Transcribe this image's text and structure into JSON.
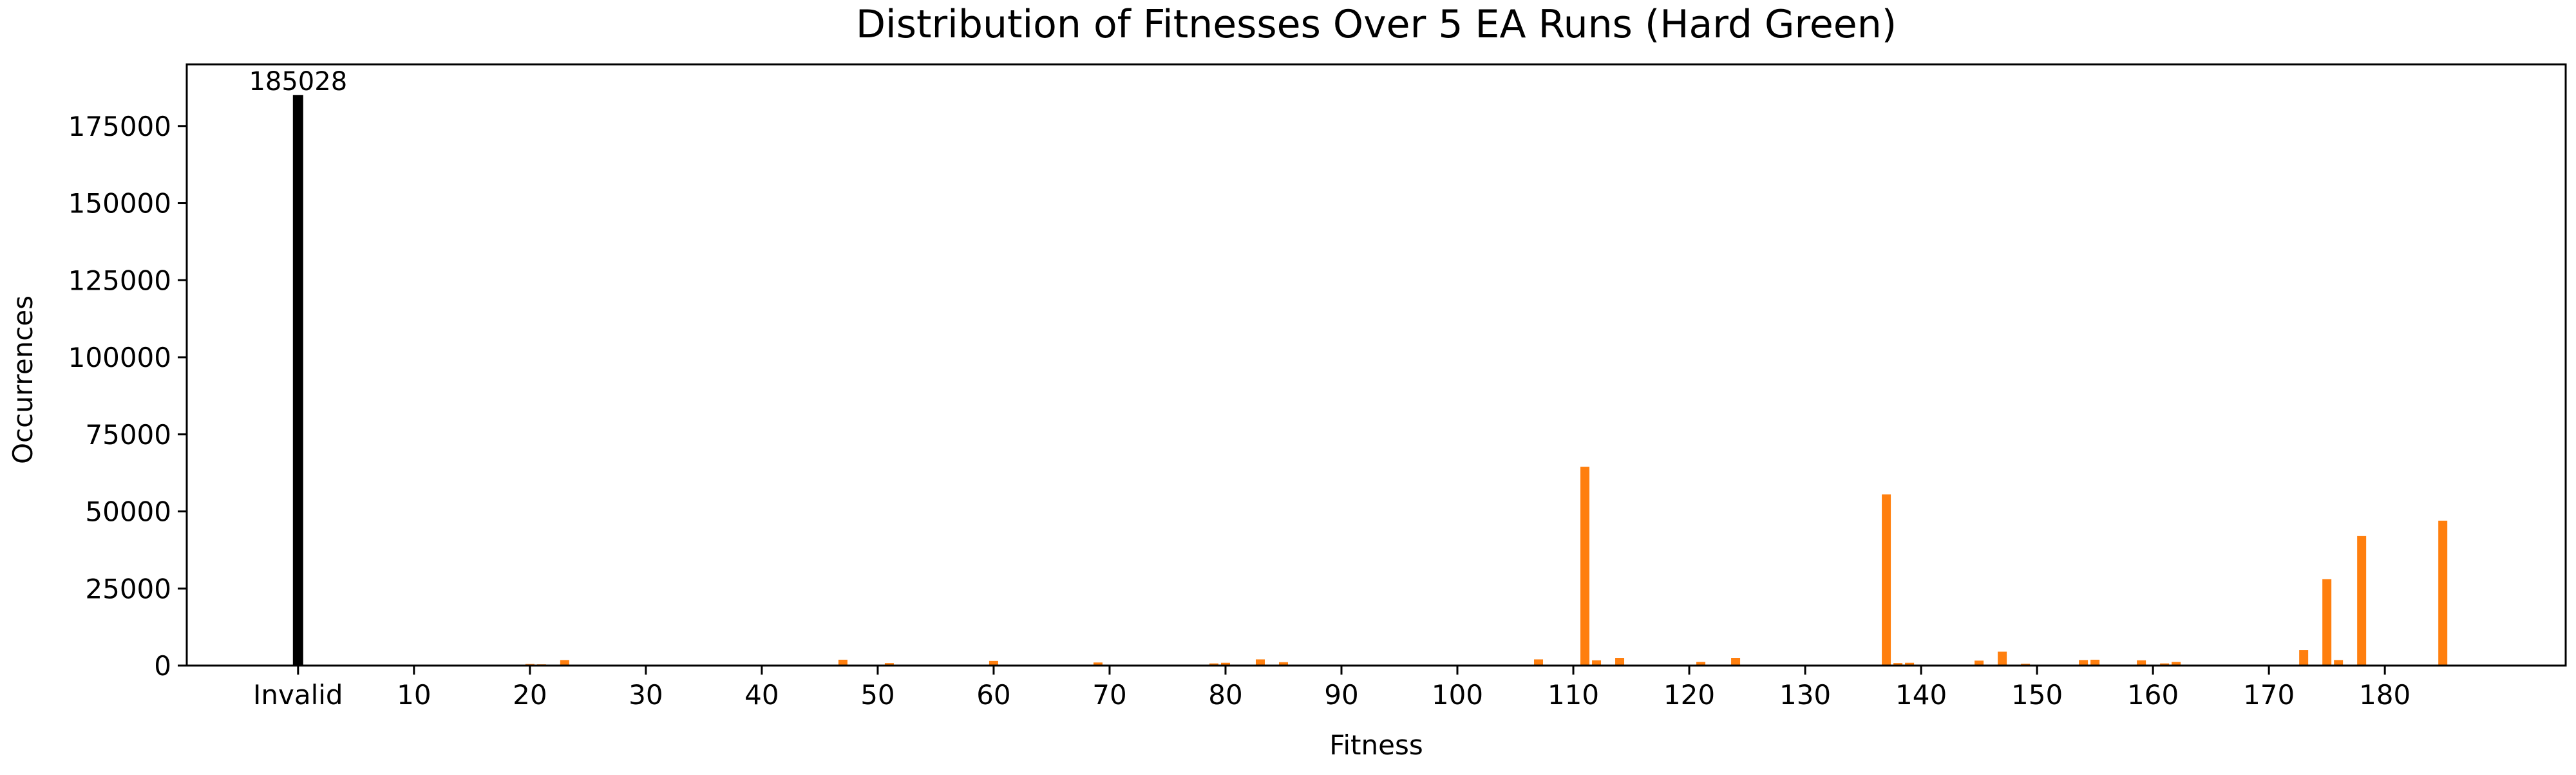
{
  "chart_data": {
    "type": "bar",
    "title": "Distribution of Fitnesses Over 5 EA Runs (Hard Green)",
    "xlabel": "Fitness",
    "ylabel": "Occurrences",
    "ylim": [
      0,
      195000
    ],
    "xlim": [
      -9.6,
      195.6
    ],
    "yticks": [
      0,
      25000,
      50000,
      75000,
      100000,
      125000,
      150000,
      175000
    ],
    "xticks": [
      {
        "value": 0,
        "label": "Invalid"
      },
      {
        "value": 10,
        "label": "10"
      },
      {
        "value": 20,
        "label": "20"
      },
      {
        "value": 30,
        "label": "30"
      },
      {
        "value": 40,
        "label": "40"
      },
      {
        "value": 50,
        "label": "50"
      },
      {
        "value": 60,
        "label": "60"
      },
      {
        "value": 70,
        "label": "70"
      },
      {
        "value": 80,
        "label": "80"
      },
      {
        "value": 90,
        "label": "90"
      },
      {
        "value": 100,
        "label": "100"
      },
      {
        "value": 110,
        "label": "110"
      },
      {
        "value": 120,
        "label": "120"
      },
      {
        "value": 130,
        "label": "130"
      },
      {
        "value": 140,
        "label": "140"
      },
      {
        "value": 150,
        "label": "150"
      },
      {
        "value": 160,
        "label": "160"
      },
      {
        "value": 170,
        "label": "170"
      },
      {
        "value": 180,
        "label": "180"
      }
    ],
    "grid": false,
    "invalid_bar": {
      "label": "Invalid",
      "value": 185028,
      "data_label": "185028",
      "color": "#000000"
    },
    "bar_color": "#ff7f0e",
    "bars": [
      {
        "x": 20,
        "y": 500
      },
      {
        "x": 21,
        "y": 400
      },
      {
        "x": 23,
        "y": 1800
      },
      {
        "x": 47,
        "y": 1900
      },
      {
        "x": 51,
        "y": 800
      },
      {
        "x": 60,
        "y": 1500
      },
      {
        "x": 69,
        "y": 1000
      },
      {
        "x": 76,
        "y": 300
      },
      {
        "x": 79,
        "y": 700
      },
      {
        "x": 80,
        "y": 900
      },
      {
        "x": 83,
        "y": 2000
      },
      {
        "x": 85,
        "y": 1100
      },
      {
        "x": 95,
        "y": 300
      },
      {
        "x": 98,
        "y": 300
      },
      {
        "x": 99,
        "y": 300
      },
      {
        "x": 107,
        "y": 2000
      },
      {
        "x": 111,
        "y": 64500
      },
      {
        "x": 112,
        "y": 1700
      },
      {
        "x": 114,
        "y": 2500
      },
      {
        "x": 121,
        "y": 1200
      },
      {
        "x": 124,
        "y": 2500
      },
      {
        "x": 137,
        "y": 55500
      },
      {
        "x": 138,
        "y": 800
      },
      {
        "x": 139,
        "y": 900
      },
      {
        "x": 145,
        "y": 1600
      },
      {
        "x": 147,
        "y": 4500
      },
      {
        "x": 149,
        "y": 600
      },
      {
        "x": 154,
        "y": 1800
      },
      {
        "x": 155,
        "y": 1900
      },
      {
        "x": 159,
        "y": 1700
      },
      {
        "x": 161,
        "y": 700
      },
      {
        "x": 162,
        "y": 1200
      },
      {
        "x": 173,
        "y": 5000
      },
      {
        "x": 175,
        "y": 28000
      },
      {
        "x": 176,
        "y": 1800
      },
      {
        "x": 178,
        "y": 42000
      },
      {
        "x": 185,
        "y": 47000
      }
    ]
  }
}
